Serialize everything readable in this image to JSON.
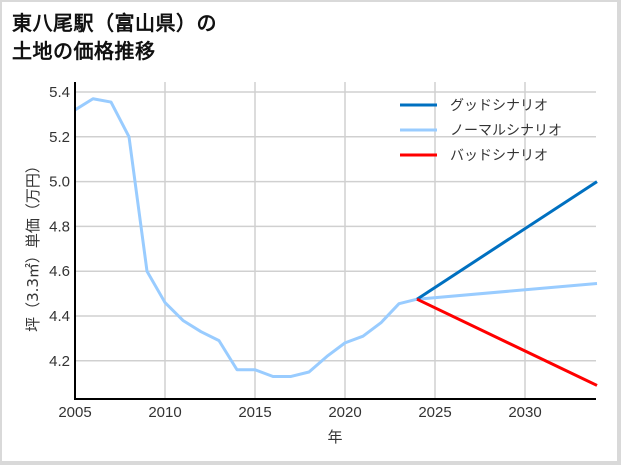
{
  "title_line1": "東八尾駅（富山県）の",
  "title_line2": "土地の価格推移",
  "chart_data": {
    "type": "line",
    "title": "東八尾駅（富山県）の土地の価格推移",
    "xlabel": "年",
    "ylabel": "坪（3.3㎡）単価（万円）",
    "xlim": [
      2005,
      2034
    ],
    "ylim": [
      4.07,
      5.44
    ],
    "xticks": [
      2005,
      2010,
      2015,
      2020,
      2025,
      2030
    ],
    "yticks": [
      4.2,
      4.4,
      4.6,
      4.8,
      5.0,
      5.2,
      5.4
    ],
    "grid": true,
    "legend_position": "upper right",
    "series": [
      {
        "name": "グッドシナリオ",
        "color": "#0070c0",
        "x": [
          2024,
          2034
        ],
        "values": [
          4.475,
          5.0
        ]
      },
      {
        "name": "ノーマルシナリオ",
        "color": "#99ccff",
        "x": [
          2005,
          2006,
          2007,
          2008,
          2009,
          2010,
          2011,
          2012,
          2013,
          2014,
          2015,
          2016,
          2017,
          2018,
          2019,
          2020,
          2021,
          2022,
          2023,
          2024,
          2034
        ],
        "values": [
          5.32,
          5.37,
          5.355,
          5.2,
          4.6,
          4.46,
          4.38,
          4.33,
          4.29,
          4.16,
          4.16,
          4.13,
          4.13,
          4.15,
          4.22,
          4.28,
          4.31,
          4.37,
          4.455,
          4.475,
          4.545
        ]
      },
      {
        "name": "バッドシナリオ",
        "color": "#ff0000",
        "x": [
          2024,
          2034
        ],
        "values": [
          4.475,
          4.09
        ]
      }
    ]
  }
}
